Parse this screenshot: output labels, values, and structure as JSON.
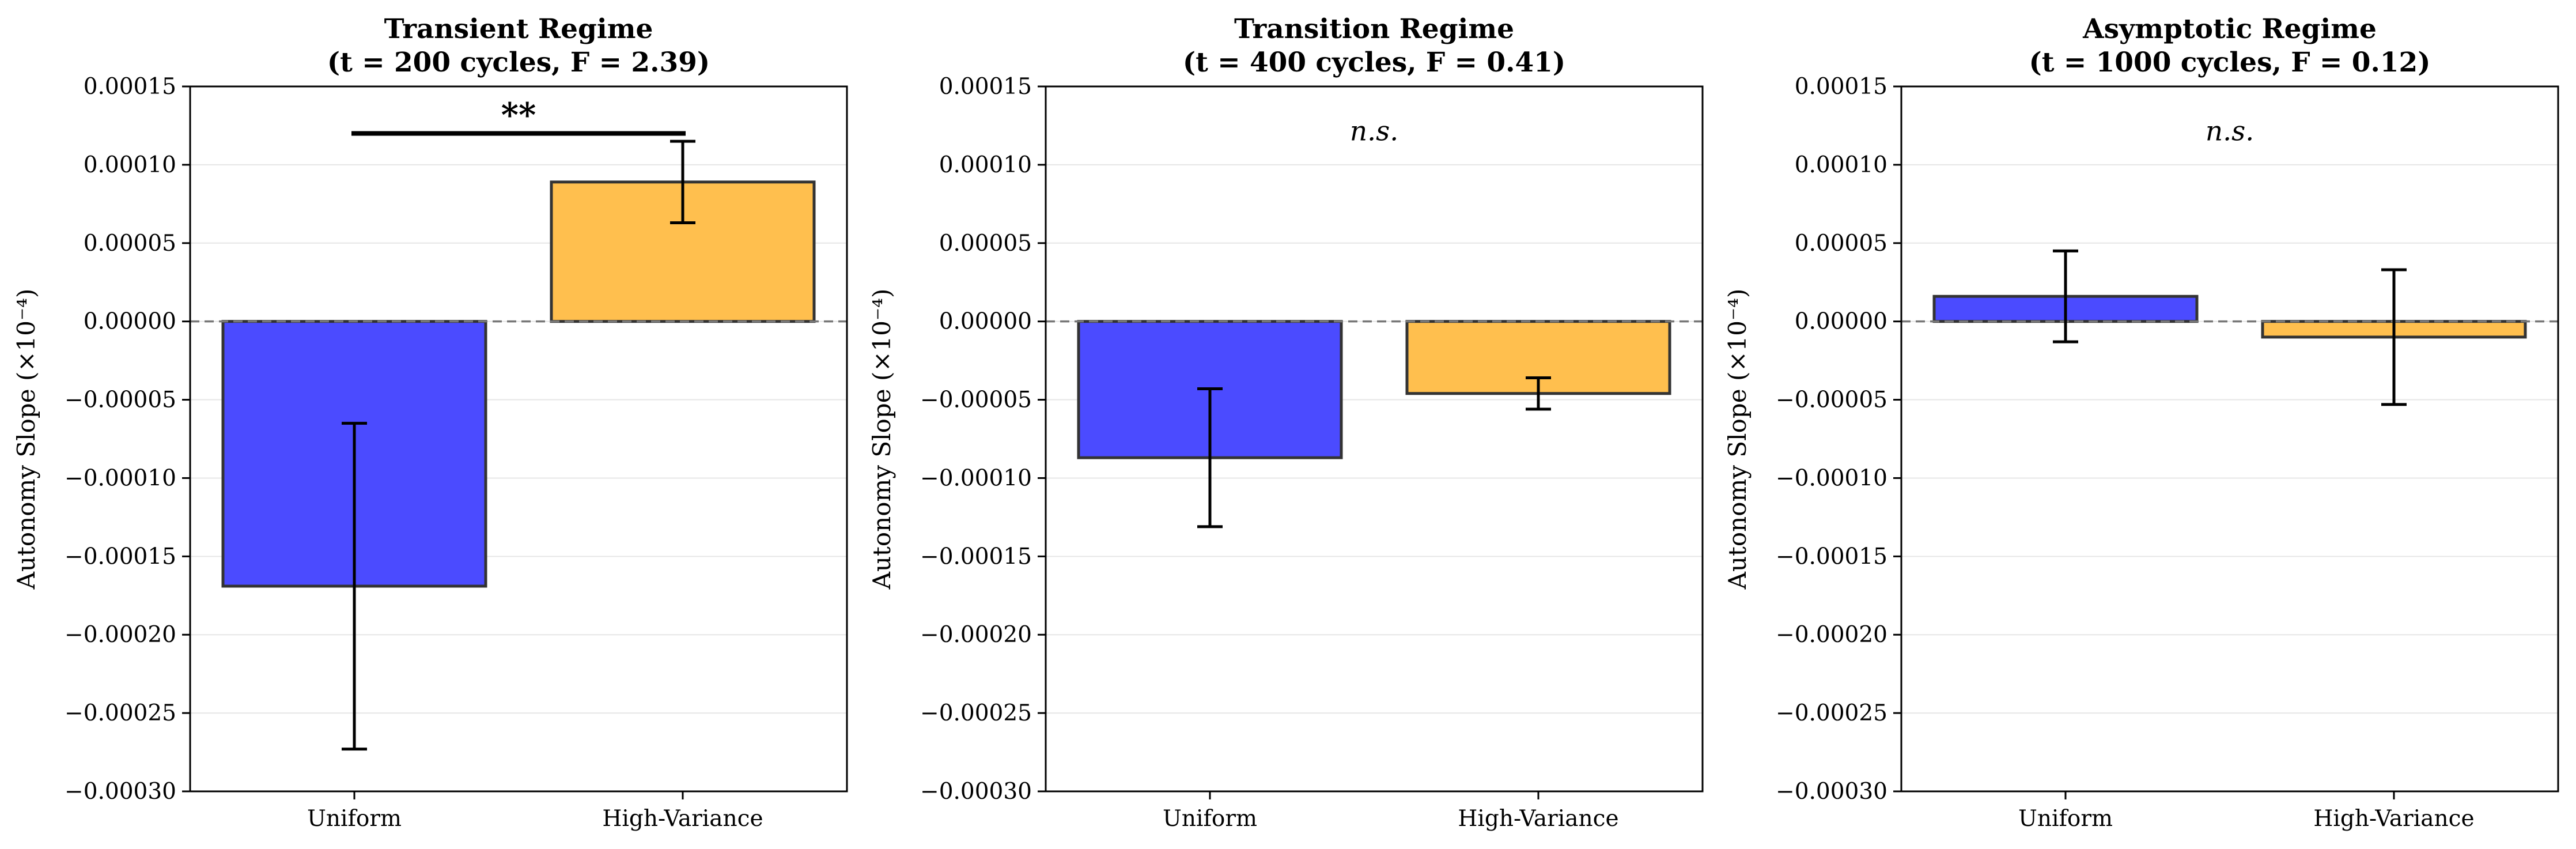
{
  "chart_data": [
    {
      "type": "bar",
      "title": "Transient Regime",
      "subtitle": "(t = 200 cycles, F = 2.39)",
      "categories": [
        "Uniform",
        "High-Variance"
      ],
      "values": [
        -0.000169,
        8.9e-05
      ],
      "errors": [
        0.000104,
        2.6e-05
      ],
      "colors": [
        "#4b4bff",
        "#ffbf4e"
      ],
      "ylabel": "Autonomy Slope (×10⁻⁴)",
      "ylim": [
        -0.0003,
        0.00015
      ],
      "yticks": [
        "−0.00030",
        "−0.00025",
        "−0.00020",
        "−0.00015",
        "−0.00010",
        "−0.00005",
        "0.00000",
        "0.00005",
        "0.00010",
        "0.00015"
      ],
      "grid": true,
      "annotation": "**",
      "annotation_style": "bracket",
      "annotation_y": 0.00012
    },
    {
      "type": "bar",
      "title": "Transition Regime",
      "subtitle": "(t = 400 cycles, F = 0.41)",
      "categories": [
        "Uniform",
        "High-Variance"
      ],
      "values": [
        -8.7e-05,
        -4.6e-05
      ],
      "errors": [
        4.4e-05,
        1e-05
      ],
      "colors": [
        "#4b4bff",
        "#ffbf4e"
      ],
      "ylabel": "Autonomy Slope (×10⁻⁴)",
      "ylim": [
        -0.0003,
        0.00015
      ],
      "yticks": [
        "−0.00030",
        "−0.00025",
        "−0.00020",
        "−0.00015",
        "−0.00010",
        "−0.00005",
        "0.00000",
        "0.00005",
        "0.00010",
        "0.00015"
      ],
      "grid": true,
      "annotation": "n.s.",
      "annotation_style": "text",
      "annotation_y": 0.00012
    },
    {
      "type": "bar",
      "title": "Asymptotic Regime",
      "subtitle": "(t = 1000 cycles, F = 0.12)",
      "categories": [
        "Uniform",
        "High-Variance"
      ],
      "values": [
        1.6e-05,
        -1e-05
      ],
      "errors": [
        2.9e-05,
        4.3e-05
      ],
      "colors": [
        "#4b4bff",
        "#ffbf4e"
      ],
      "ylabel": "Autonomy Slope (×10⁻⁴)",
      "ylim": [
        -0.0003,
        0.00015
      ],
      "yticks": [
        "−0.00030",
        "−0.00025",
        "−0.00020",
        "−0.00015",
        "−0.00010",
        "−0.00005",
        "0.00000",
        "0.00005",
        "0.00010",
        "0.00015"
      ],
      "grid": true,
      "annotation": "n.s.",
      "annotation_style": "text",
      "annotation_y": 0.00012
    }
  ]
}
